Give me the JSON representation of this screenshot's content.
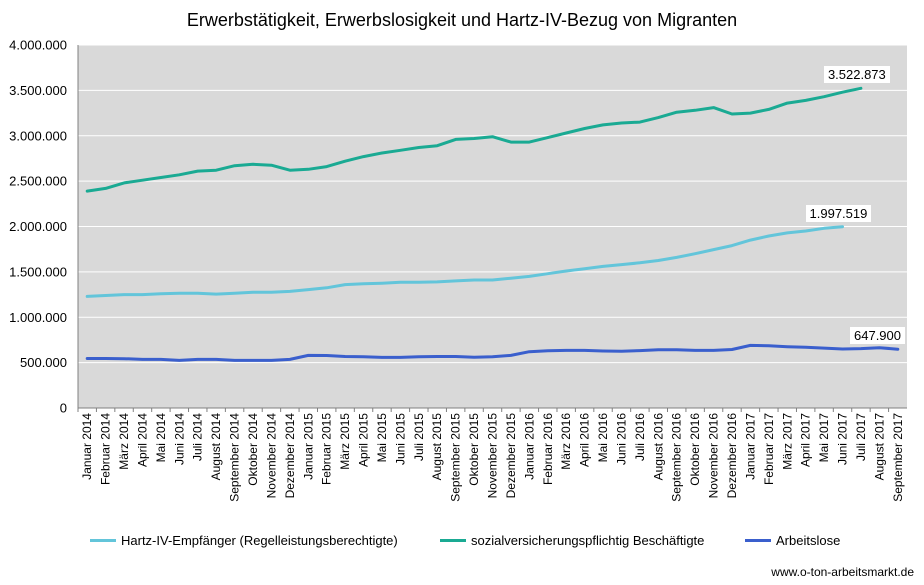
{
  "chart_data": {
    "type": "line",
    "title": "Erwerbstätigkeit, Erwerbslosigkeit und Hartz-IV-Bezug von Migranten",
    "xlabel": "",
    "ylabel": "",
    "ylim": [
      0,
      4000000
    ],
    "yticks": [
      "0",
      "500.000",
      "1.000.000",
      "1.500.000",
      "2.000.000",
      "2.500.000",
      "3.000.000",
      "3.500.000",
      "4.000.000"
    ],
    "grid": true,
    "legend_position": "bottom",
    "categories": [
      "Januar 2014",
      "Februar 2014",
      "März 2014",
      "April 2014",
      "Mai 2014",
      "Juni 2014",
      "Juli 2014",
      "August 2014",
      "September 2014",
      "Oktober 2014",
      "November 2014",
      "Dezember 2014",
      "Januar 2015",
      "Februar 2015",
      "März 2015",
      "April 2015",
      "Mai 2015",
      "Juni 2015",
      "Juli 2015",
      "August 2015",
      "September 2015",
      "Oktober 2015",
      "November 2015",
      "Dezember 2015",
      "Januar 2016",
      "Februar 2016",
      "März 2016",
      "April 2016",
      "Mai 2016",
      "Juni 2016",
      "Juli 2016",
      "August 2016",
      "September 2016",
      "Oktober 2016",
      "November 2016",
      "Dezember 2016",
      "Januar 2017",
      "Februar 2017",
      "März 2017",
      "April 2017",
      "Mai 2017",
      "Juni 2017",
      "Juli 2017",
      "August 2017",
      "September 2017"
    ],
    "series": [
      {
        "name": "Hartz-IV-Empfänger (Regelleistungsberechtigte)",
        "color": "#63c5da",
        "values": [
          1230000,
          1240000,
          1250000,
          1250000,
          1260000,
          1265000,
          1265000,
          1255000,
          1265000,
          1275000,
          1275000,
          1285000,
          1305000,
          1325000,
          1360000,
          1370000,
          1375000,
          1385000,
          1385000,
          1390000,
          1400000,
          1410000,
          1410000,
          1430000,
          1450000,
          1480000,
          1510000,
          1535000,
          1560000,
          1580000,
          1600000,
          1625000,
          1660000,
          1700000,
          1745000,
          1790000,
          1850000,
          1895000,
          1930000,
          1950000,
          1980000,
          1997519,
          null,
          null,
          null
        ],
        "callout": "1.997.519"
      },
      {
        "name": "sozialversicherungspflichtig Beschäftigte",
        "color": "#1aaa93",
        "values": [
          2390000,
          2420000,
          2480000,
          2510000,
          2540000,
          2570000,
          2610000,
          2620000,
          2670000,
          2685000,
          2675000,
          2620000,
          2630000,
          2660000,
          2720000,
          2770000,
          2810000,
          2840000,
          2870000,
          2890000,
          2960000,
          2970000,
          2990000,
          2930000,
          2930000,
          2980000,
          3030000,
          3080000,
          3120000,
          3140000,
          3150000,
          3200000,
          3260000,
          3280000,
          3310000,
          3240000,
          3250000,
          3290000,
          3360000,
          3390000,
          3430000,
          3480000,
          3522873,
          null,
          null
        ],
        "callout": "3.522.873"
      },
      {
        "name": "Arbeitslose",
        "color": "#3a5fcd",
        "values": [
          545000,
          545000,
          543000,
          535000,
          535000,
          525000,
          535000,
          535000,
          525000,
          525000,
          525000,
          535000,
          580000,
          578000,
          568000,
          565000,
          558000,
          558000,
          565000,
          568000,
          568000,
          560000,
          565000,
          580000,
          620000,
          630000,
          635000,
          635000,
          628000,
          625000,
          632000,
          642000,
          642000,
          635000,
          635000,
          645000,
          690000,
          685000,
          675000,
          670000,
          660000,
          650000,
          655000,
          665000,
          647900
        ],
        "callout": "647.900"
      }
    ]
  },
  "legend": {
    "items": [
      {
        "label": "Hartz-IV-Empfänger (Regelleistungsberechtigte)",
        "color": "#63c5da"
      },
      {
        "label": "sozialversicherungspflichtig Beschäftigte",
        "color": "#1aaa93"
      },
      {
        "label": "Arbeitslose",
        "color": "#3a5fcd"
      }
    ]
  },
  "source": "www.o-ton-arbeitsmarkt.de",
  "colors": {
    "plot_background": "#d9d9d9",
    "gridline": "#ffffff"
  }
}
